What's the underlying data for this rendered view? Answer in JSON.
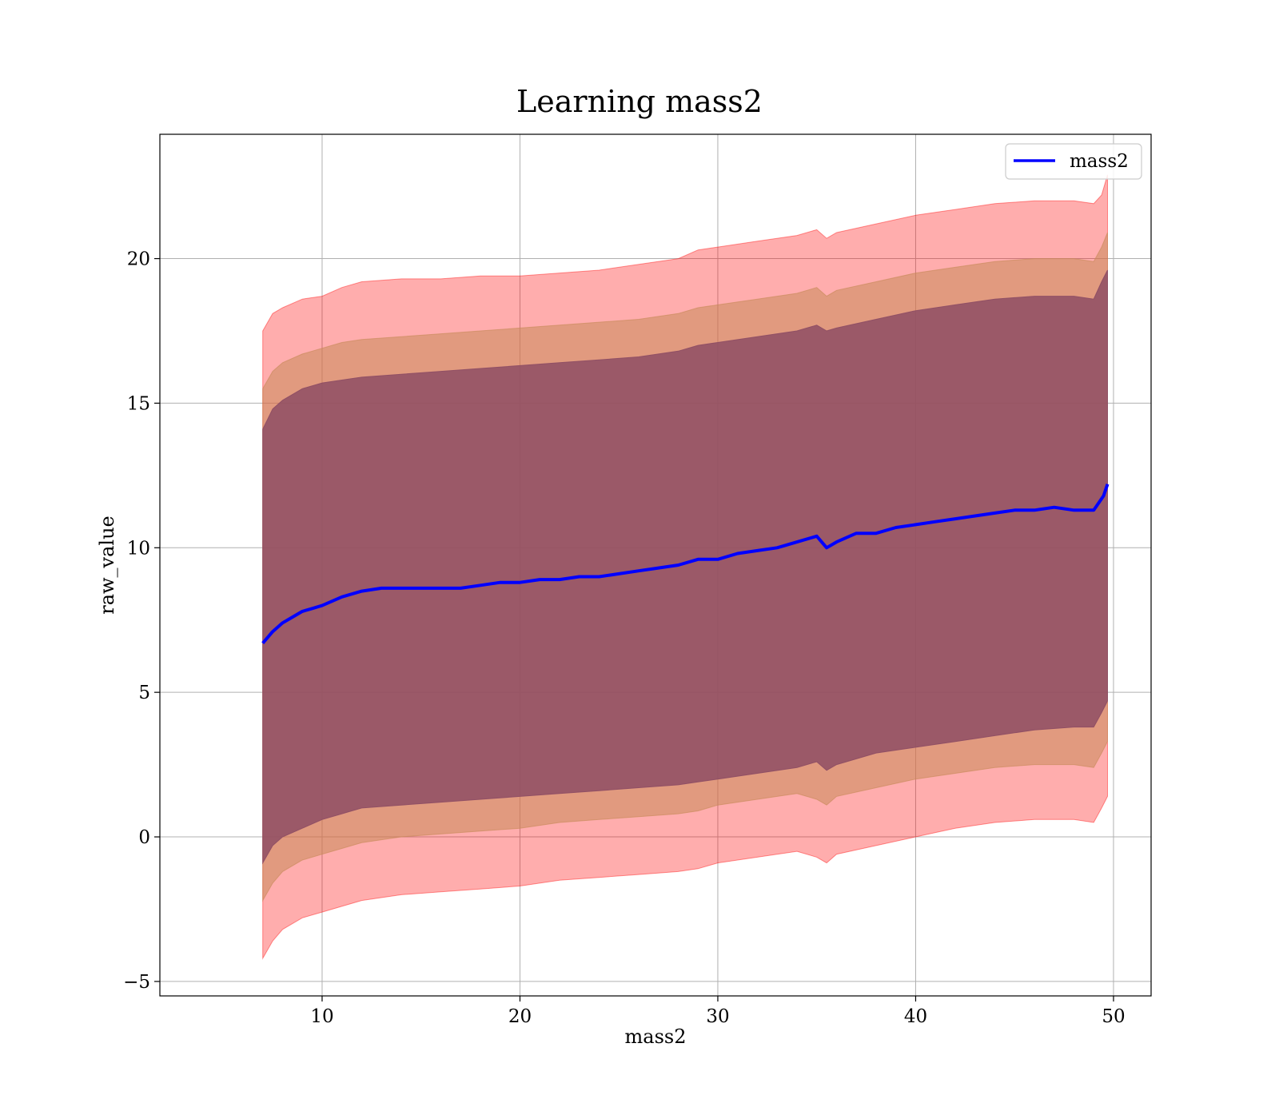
{
  "chart_data": {
    "type": "area",
    "title": "Learning mass2",
    "xlabel": "mass2",
    "ylabel": "raw_value",
    "xlim": [
      1.8,
      51.9
    ],
    "ylim": [
      -5.5,
      24.3
    ],
    "xticks": [
      10,
      20,
      30,
      40,
      50
    ],
    "yticks": [
      -5,
      0,
      5,
      10,
      15,
      20
    ],
    "xtick_labels": [
      "10",
      "20",
      "30",
      "40",
      "50"
    ],
    "ytick_labels": [
      "−5",
      "0",
      "5",
      "10",
      "15",
      "20"
    ],
    "grid": true,
    "legend": {
      "position": "top-right",
      "entries": [
        {
          "label": "mass2",
          "color": "#0000ff"
        }
      ]
    },
    "series": [
      {
        "name": "mass2",
        "color": "#0000ff",
        "x": [
          7.0,
          7.5,
          8.0,
          8.5,
          9.0,
          9.5,
          10.0,
          11.0,
          12.0,
          13.0,
          14.0,
          15.0,
          16.0,
          17.0,
          18.0,
          19.0,
          20.0,
          21.0,
          22.0,
          23.0,
          24.0,
          25.0,
          26.0,
          27.0,
          28.0,
          29.0,
          30.0,
          31.0,
          32.0,
          33.0,
          34.0,
          35.0,
          35.5,
          36.0,
          37.0,
          38.0,
          39.0,
          40.0,
          41.0,
          42.0,
          43.0,
          44.0,
          45.0,
          46.0,
          47.0,
          48.0,
          49.0,
          49.5,
          49.7
        ],
        "y": [
          6.7,
          7.1,
          7.4,
          7.6,
          7.8,
          7.9,
          8.0,
          8.3,
          8.5,
          8.6,
          8.6,
          8.6,
          8.6,
          8.6,
          8.7,
          8.8,
          8.8,
          8.9,
          8.9,
          9.0,
          9.0,
          9.1,
          9.2,
          9.3,
          9.4,
          9.6,
          9.6,
          9.8,
          9.9,
          10.0,
          10.2,
          10.4,
          10.0,
          10.2,
          10.5,
          10.5,
          10.7,
          10.8,
          10.9,
          11.0,
          11.1,
          11.2,
          11.3,
          11.3,
          11.4,
          11.3,
          11.3,
          11.8,
          12.2
        ]
      }
    ],
    "bands": [
      {
        "color": "#ff0000",
        "opacity": 0.32,
        "x": [
          7.0,
          7.5,
          8.0,
          9.0,
          10.0,
          11.0,
          12.0,
          14.0,
          16.0,
          18.0,
          20.0,
          22.0,
          24.0,
          26.0,
          28.0,
          29.0,
          30.0,
          32.0,
          34.0,
          35.0,
          35.5,
          36.0,
          38.0,
          40.0,
          42.0,
          44.0,
          46.0,
          48.0,
          49.0,
          49.4,
          49.7
        ],
        "lower": [
          -4.2,
          -3.6,
          -3.2,
          -2.8,
          -2.6,
          -2.4,
          -2.2,
          -2.0,
          -1.9,
          -1.8,
          -1.7,
          -1.5,
          -1.4,
          -1.3,
          -1.2,
          -1.1,
          -0.9,
          -0.7,
          -0.5,
          -0.7,
          -0.9,
          -0.6,
          -0.3,
          0.0,
          0.3,
          0.5,
          0.6,
          0.6,
          0.5,
          1.0,
          1.4
        ],
        "upper": [
          17.5,
          18.1,
          18.3,
          18.6,
          18.7,
          19.0,
          19.2,
          19.3,
          19.3,
          19.4,
          19.4,
          19.5,
          19.6,
          19.8,
          20.0,
          20.3,
          20.4,
          20.6,
          20.8,
          21.0,
          20.7,
          20.9,
          21.2,
          21.5,
          21.7,
          21.9,
          22.0,
          22.0,
          21.9,
          22.2,
          22.9
        ]
      },
      {
        "color": "#c88a5a",
        "opacity": 0.55,
        "x": [
          7.0,
          7.5,
          8.0,
          9.0,
          10.0,
          11.0,
          12.0,
          14.0,
          16.0,
          18.0,
          20.0,
          22.0,
          24.0,
          26.0,
          28.0,
          29.0,
          30.0,
          32.0,
          34.0,
          35.0,
          35.5,
          36.0,
          38.0,
          40.0,
          42.0,
          44.0,
          46.0,
          48.0,
          49.0,
          49.4,
          49.7
        ],
        "lower": [
          -2.2,
          -1.6,
          -1.2,
          -0.8,
          -0.6,
          -0.4,
          -0.2,
          0.0,
          0.1,
          0.2,
          0.3,
          0.5,
          0.6,
          0.7,
          0.8,
          0.9,
          1.1,
          1.3,
          1.5,
          1.3,
          1.1,
          1.4,
          1.7,
          2.0,
          2.2,
          2.4,
          2.5,
          2.5,
          2.4,
          2.9,
          3.3
        ],
        "upper": [
          15.5,
          16.1,
          16.4,
          16.7,
          16.9,
          17.1,
          17.2,
          17.3,
          17.4,
          17.5,
          17.6,
          17.7,
          17.8,
          17.9,
          18.1,
          18.3,
          18.4,
          18.6,
          18.8,
          19.0,
          18.7,
          18.9,
          19.2,
          19.5,
          19.7,
          19.9,
          20.0,
          20.0,
          19.9,
          20.4,
          20.9
        ]
      },
      {
        "color": "#8e4e64",
        "opacity": 0.85,
        "x": [
          7.0,
          7.5,
          8.0,
          9.0,
          10.0,
          11.0,
          12.0,
          14.0,
          16.0,
          18.0,
          20.0,
          22.0,
          24.0,
          26.0,
          28.0,
          29.0,
          30.0,
          32.0,
          34.0,
          35.0,
          35.5,
          36.0,
          38.0,
          40.0,
          42.0,
          44.0,
          46.0,
          48.0,
          49.0,
          49.4,
          49.7
        ],
        "lower": [
          -0.9,
          -0.3,
          0.0,
          0.3,
          0.6,
          0.8,
          1.0,
          1.1,
          1.2,
          1.3,
          1.4,
          1.5,
          1.6,
          1.7,
          1.8,
          1.9,
          2.0,
          2.2,
          2.4,
          2.6,
          2.3,
          2.5,
          2.9,
          3.1,
          3.3,
          3.5,
          3.7,
          3.8,
          3.8,
          4.3,
          4.7
        ],
        "upper": [
          14.1,
          14.8,
          15.1,
          15.5,
          15.7,
          15.8,
          15.9,
          16.0,
          16.1,
          16.2,
          16.3,
          16.4,
          16.5,
          16.6,
          16.8,
          17.0,
          17.1,
          17.3,
          17.5,
          17.7,
          17.5,
          17.6,
          17.9,
          18.2,
          18.4,
          18.6,
          18.7,
          18.7,
          18.6,
          19.2,
          19.6
        ]
      }
    ]
  }
}
